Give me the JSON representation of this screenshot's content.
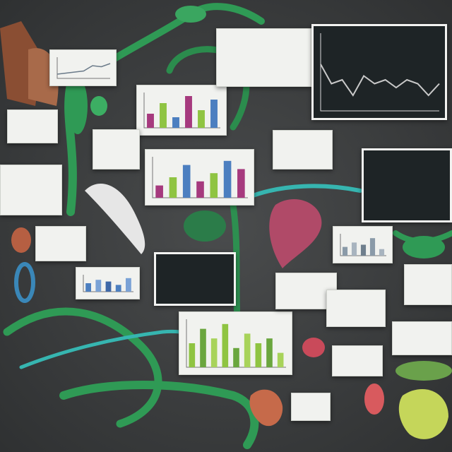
{
  "colors": {
    "background": "#3b3d3e",
    "vine_green": "#2f9a55",
    "vine_cyan": "#36b5b0",
    "card_paper": "#f1f2ef",
    "dark_panel": "#1e2426",
    "bar_magenta": "#a63a7e",
    "bar_green": "#8fc442",
    "bar_blue": "#4c7fc0",
    "flower_pink": "#b04a68",
    "specimen_orange": "#c66a4a"
  },
  "cards": [
    {
      "name": "line-chart-card-1",
      "kind": "line",
      "dark": false,
      "series": [
        0.2,
        0.25,
        0.3,
        0.35,
        0.6,
        0.55,
        0.7
      ]
    },
    {
      "name": "bar-chart-card-1",
      "kind": "bar",
      "dark": false,
      "palette": "mixed",
      "series": [
        0.4,
        0.7,
        0.3,
        0.9,
        0.5,
        0.8
      ]
    },
    {
      "name": "line-chart-card-dark",
      "kind": "line",
      "dark": true,
      "series": [
        0.6,
        0.35,
        0.4,
        0.2,
        0.45,
        0.35,
        0.4,
        0.3,
        0.4,
        0.35,
        0.2,
        0.35
      ]
    },
    {
      "name": "bar-chart-card-2",
      "kind": "bar",
      "dark": false,
      "palette": "mixed",
      "series": [
        0.3,
        0.5,
        0.8,
        0.4,
        0.6,
        0.9,
        0.7
      ]
    },
    {
      "name": "bar-chart-card-3",
      "kind": "bar",
      "dark": false,
      "palette": "green",
      "series": [
        0.5,
        0.8,
        0.6,
        0.9,
        0.4,
        0.7,
        0.5,
        0.6,
        0.3
      ]
    },
    {
      "name": "bar-chart-card-4",
      "kind": "bar",
      "dark": false,
      "palette": "blue",
      "series": [
        0.5,
        0.7,
        0.6,
        0.4,
        0.8
      ]
    },
    {
      "name": "bar-chart-card-5",
      "kind": "bar",
      "dark": false,
      "palette": "gray",
      "series": [
        0.4,
        0.6,
        0.5,
        0.8,
        0.3
      ]
    }
  ]
}
